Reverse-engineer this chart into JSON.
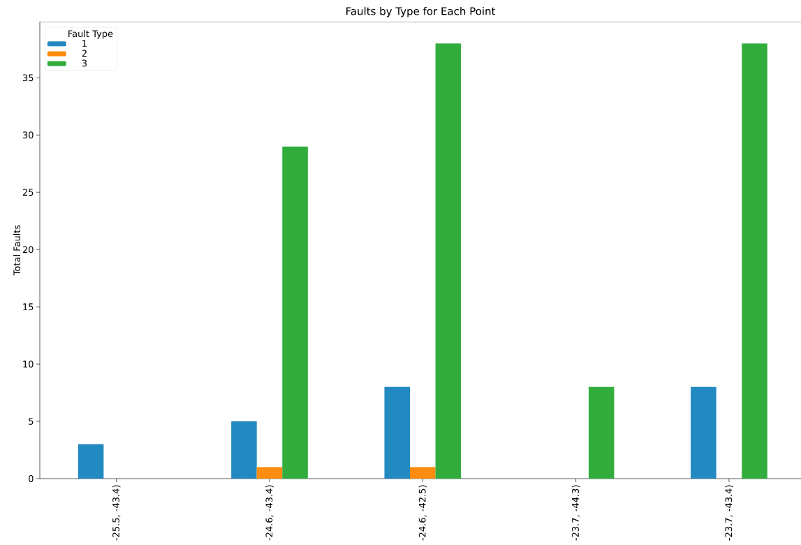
{
  "chart_data": {
    "type": "bar",
    "title": "Faults by Type for Each Point",
    "ylabel": "Total Faults",
    "legend_title": "Fault Type",
    "categories": [
      "-25.5, -43.4)",
      "-24.6, -43.4)",
      "-24.6, -42.5)",
      "-23.7, -44.3)",
      "-23.7, -43.4)"
    ],
    "series": [
      {
        "name": "1",
        "color": "#2389c1",
        "values": [
          3,
          5,
          8,
          0,
          8
        ]
      },
      {
        "name": "2",
        "color": "#ff8c0f",
        "values": [
          0,
          1,
          1,
          0,
          0
        ]
      },
      {
        "name": "3",
        "color": "#33ac3e",
        "values": [
          0,
          29,
          38,
          8,
          38
        ]
      }
    ],
    "ylim": [
      0,
      39.9
    ],
    "yticks": [
      0,
      5,
      10,
      15,
      20,
      25,
      30,
      35
    ],
    "legend": "top left"
  }
}
